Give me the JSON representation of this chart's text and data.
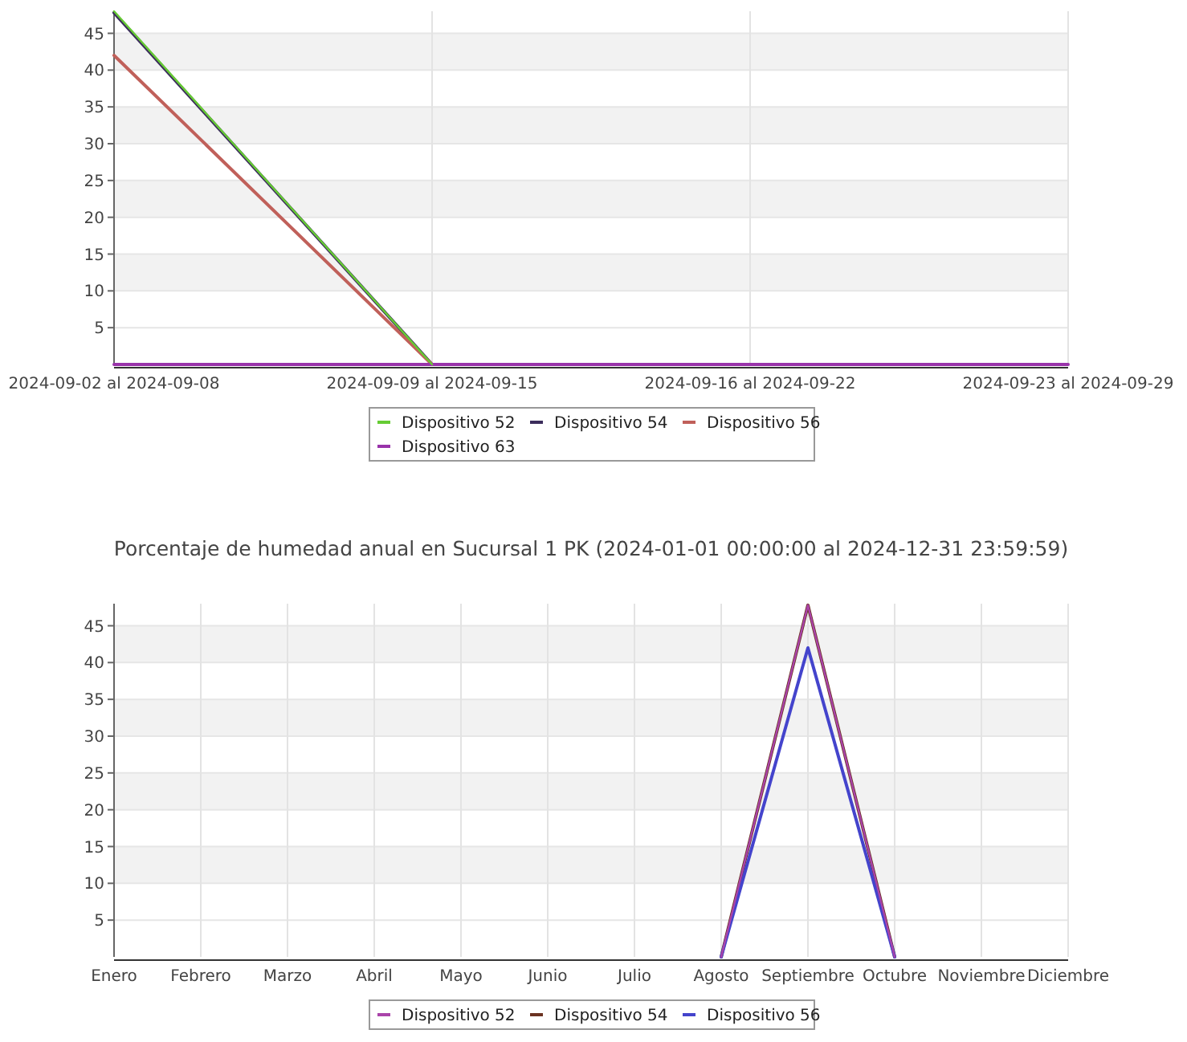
{
  "chart_data": [
    {
      "type": "line",
      "categories": [
        "2024-09-02 al 2024-09-08",
        "2024-09-09 al 2024-09-15",
        "2024-09-16 al 2024-09-22",
        "2024-09-23 al 2024-09-29"
      ],
      "ylim": [
        0,
        48
      ],
      "yticks": [
        5,
        10,
        15,
        20,
        25,
        30,
        35,
        40,
        45
      ],
      "grid": true,
      "legend": "bottom",
      "series": [
        {
          "name": "Dispositivo 52",
          "color": "#66cc33",
          "values": [
            48,
            0,
            null,
            null
          ]
        },
        {
          "name": "Dispositivo 54",
          "color": "#3b2d5c",
          "values": [
            47.8,
            0,
            null,
            null
          ]
        },
        {
          "name": "Dispositivo 56",
          "color": "#c0605a",
          "values": [
            42,
            0,
            null,
            null
          ]
        },
        {
          "name": "Dispositivo 63",
          "color": "#9933aa",
          "values": [
            0,
            0,
            0,
            0
          ]
        }
      ]
    },
    {
      "type": "line",
      "title": "Porcentaje de humedad anual en Sucursal 1 PK (2024-01-01 00:00:00 al 2024-12-31 23:59:59)",
      "categories": [
        "Enero",
        "Febrero",
        "Marzo",
        "Abril",
        "Mayo",
        "Junio",
        "Julio",
        "Agosto",
        "Septiembre",
        "Octubre",
        "Noviembre",
        "Diciembre"
      ],
      "ylim": [
        0,
        48
      ],
      "yticks": [
        5,
        10,
        15,
        20,
        25,
        30,
        35,
        40,
        45
      ],
      "grid": true,
      "legend": "bottom",
      "series": [
        {
          "name": "Dispositivo 52",
          "color": "#aa44aa",
          "values": [
            null,
            null,
            null,
            null,
            null,
            null,
            null,
            0,
            47.8,
            0,
            null,
            null
          ]
        },
        {
          "name": "Dispositivo 54",
          "color": "#6b3322",
          "values": [
            null,
            null,
            null,
            null,
            null,
            null,
            null,
            0,
            47.8,
            0,
            null,
            null
          ]
        },
        {
          "name": "Dispositivo 56",
          "color": "#4444cc",
          "values": [
            null,
            null,
            null,
            null,
            null,
            null,
            null,
            0,
            42,
            0,
            null,
            null
          ]
        }
      ]
    }
  ]
}
